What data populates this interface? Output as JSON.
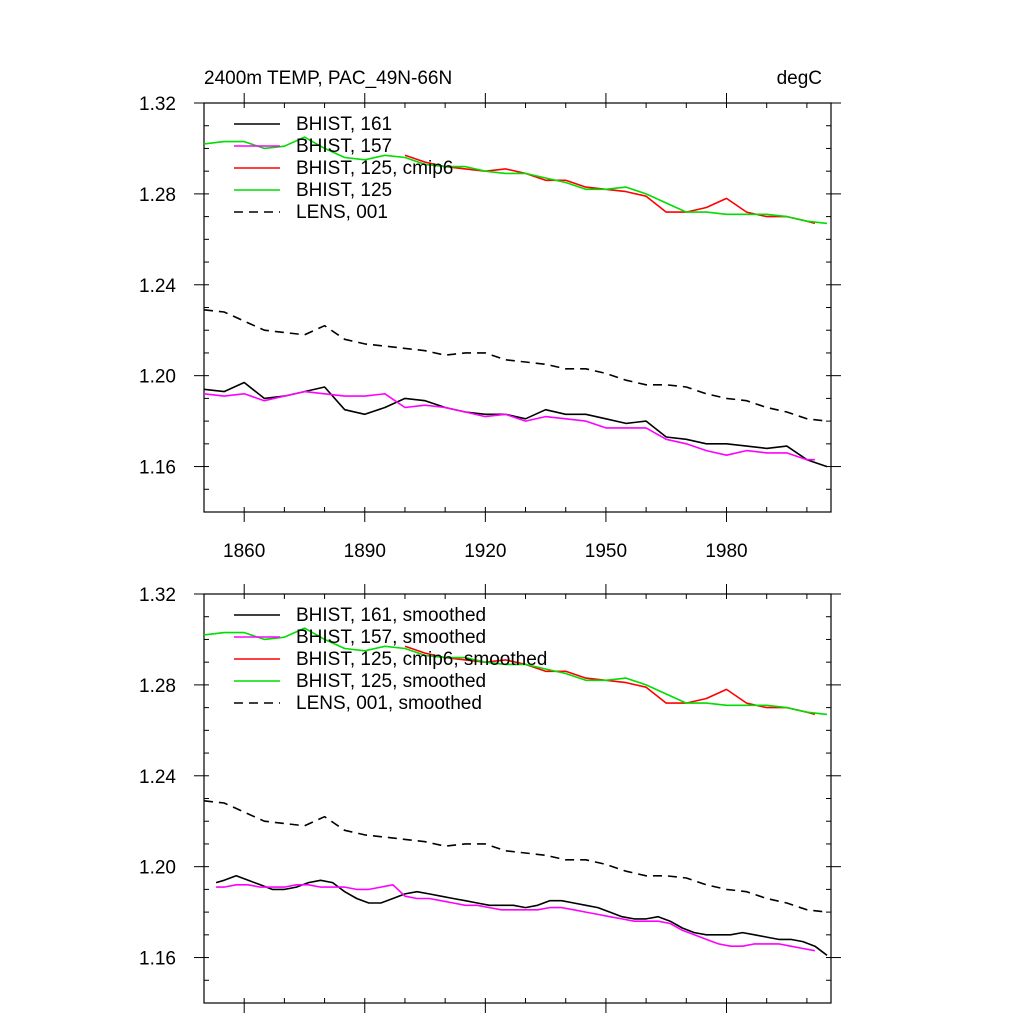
{
  "header": {
    "title": "2400m TEMP, PAC_49N-66N",
    "units": "degC"
  },
  "chart_data": [
    {
      "type": "line",
      "xlim": [
        1850,
        2006
      ],
      "ylim": [
        1.14,
        1.32
      ],
      "xticks": [
        1860,
        1890,
        1920,
        1950,
        1980
      ],
      "xtick_labels": [
        "1860",
        "1890",
        "1920",
        "1950",
        "1980"
      ],
      "yticks": [
        1.16,
        1.2,
        1.24,
        1.28,
        1.32
      ],
      "ytick_labels": [
        "1.16",
        "1.20",
        "1.24",
        "1.28",
        "1.32"
      ],
      "legend_position": "top-left",
      "series": [
        {
          "name": "BHIST, 161",
          "color": "#000000",
          "dash": "solid",
          "x": [
            1850,
            1855,
            1860,
            1865,
            1870,
            1875,
            1880,
            1885,
            1890,
            1895,
            1900,
            1905,
            1910,
            1915,
            1920,
            1925,
            1930,
            1935,
            1940,
            1945,
            1950,
            1955,
            1960,
            1965,
            1970,
            1975,
            1980,
            1985,
            1990,
            1995,
            2000,
            2005
          ],
          "y": [
            1.194,
            1.193,
            1.197,
            1.19,
            1.191,
            1.193,
            1.195,
            1.185,
            1.183,
            1.186,
            1.19,
            1.189,
            1.186,
            1.184,
            1.183,
            1.183,
            1.181,
            1.185,
            1.183,
            1.183,
            1.181,
            1.179,
            1.18,
            1.173,
            1.172,
            1.17,
            1.17,
            1.169,
            1.168,
            1.169,
            1.163,
            1.16
          ]
        },
        {
          "name": "BHIST, 157",
          "color": "#ff00ff",
          "dash": "solid",
          "x": [
            1850,
            1855,
            1860,
            1865,
            1870,
            1875,
            1880,
            1885,
            1890,
            1895,
            1900,
            1905,
            1910,
            1915,
            1920,
            1925,
            1930,
            1935,
            1940,
            1945,
            1950,
            1955,
            1960,
            1965,
            1970,
            1975,
            1980,
            1985,
            1990,
            1995,
            2000,
            2002
          ],
          "y": [
            1.192,
            1.191,
            1.192,
            1.189,
            1.191,
            1.193,
            1.192,
            1.191,
            1.191,
            1.192,
            1.186,
            1.187,
            1.186,
            1.184,
            1.182,
            1.183,
            1.18,
            1.182,
            1.181,
            1.18,
            1.177,
            1.177,
            1.177,
            1.172,
            1.17,
            1.167,
            1.165,
            1.167,
            1.166,
            1.166,
            1.163,
            1.163
          ]
        },
        {
          "name": "BHIST, 125, cmip6",
          "color": "#ff0000",
          "dash": "solid",
          "x": [
            1900,
            1905,
            1910,
            1915,
            1920,
            1925,
            1930,
            1935,
            1940,
            1945,
            1950,
            1955,
            1960,
            1965,
            1970,
            1975,
            1980,
            1985,
            1990,
            1995,
            2000,
            2002
          ],
          "y": [
            1.297,
            1.294,
            1.292,
            1.291,
            1.29,
            1.291,
            1.289,
            1.286,
            1.286,
            1.283,
            1.282,
            1.281,
            1.279,
            1.272,
            1.272,
            1.274,
            1.278,
            1.272,
            1.27,
            1.27,
            1.268,
            1.267
          ]
        },
        {
          "name": "BHIST, 125",
          "color": "#00dd00",
          "dash": "solid",
          "x": [
            1850,
            1855,
            1860,
            1865,
            1870,
            1875,
            1880,
            1885,
            1890,
            1895,
            1900,
            1905,
            1910,
            1915,
            1920,
            1925,
            1930,
            1935,
            1940,
            1945,
            1950,
            1955,
            1960,
            1965,
            1970,
            1975,
            1980,
            1985,
            1990,
            1995,
            2000,
            2005
          ],
          "y": [
            1.302,
            1.303,
            1.303,
            1.3,
            1.301,
            1.305,
            1.3,
            1.296,
            1.295,
            1.297,
            1.296,
            1.293,
            1.292,
            1.292,
            1.29,
            1.289,
            1.289,
            1.287,
            1.285,
            1.282,
            1.282,
            1.283,
            1.28,
            1.276,
            1.272,
            1.272,
            1.271,
            1.271,
            1.271,
            1.27,
            1.268,
            1.267
          ]
        },
        {
          "name": "LENS, 001",
          "color": "#000000",
          "dash": "dashed",
          "x": [
            1850,
            1855,
            1860,
            1865,
            1870,
            1875,
            1880,
            1885,
            1890,
            1895,
            1900,
            1905,
            1910,
            1915,
            1920,
            1925,
            1930,
            1935,
            1940,
            1945,
            1950,
            1955,
            1960,
            1965,
            1970,
            1975,
            1980,
            1985,
            1990,
            1995,
            2000,
            2005
          ],
          "y": [
            1.229,
            1.228,
            1.224,
            1.22,
            1.219,
            1.218,
            1.222,
            1.216,
            1.214,
            1.213,
            1.212,
            1.211,
            1.209,
            1.21,
            1.21,
            1.207,
            1.206,
            1.205,
            1.203,
            1.203,
            1.201,
            1.198,
            1.196,
            1.196,
            1.195,
            1.192,
            1.19,
            1.189,
            1.186,
            1.184,
            1.181,
            1.18
          ]
        }
      ]
    },
    {
      "type": "line",
      "xlim": [
        1850,
        2006
      ],
      "ylim": [
        1.14,
        1.32
      ],
      "xticks": [
        1860,
        1890,
        1920,
        1950,
        1980
      ],
      "yticks": [
        1.16,
        1.2,
        1.24,
        1.28,
        1.32
      ],
      "ytick_labels": [
        "1.16",
        "1.20",
        "1.24",
        "1.28",
        "1.32"
      ],
      "legend_position": "top-left",
      "series": [
        {
          "name": "BHIST, 161, smoothed",
          "color": "#000000",
          "dash": "solid",
          "x": [
            1853,
            1855,
            1858,
            1861,
            1864,
            1867,
            1870,
            1873,
            1876,
            1879,
            1882,
            1885,
            1888,
            1891,
            1894,
            1897,
            1900,
            1903,
            1906,
            1909,
            1912,
            1915,
            1918,
            1921,
            1924,
            1927,
            1930,
            1933,
            1936,
            1939,
            1942,
            1945,
            1948,
            1951,
            1954,
            1957,
            1960,
            1963,
            1966,
            1969,
            1972,
            1975,
            1978,
            1981,
            1984,
            1987,
            1990,
            1993,
            1996,
            1999,
            2002,
            2005
          ],
          "y": [
            1.193,
            1.194,
            1.196,
            1.194,
            1.192,
            1.19,
            1.19,
            1.191,
            1.193,
            1.194,
            1.193,
            1.189,
            1.186,
            1.184,
            1.184,
            1.186,
            1.188,
            1.189,
            1.188,
            1.187,
            1.186,
            1.185,
            1.184,
            1.183,
            1.183,
            1.183,
            1.182,
            1.183,
            1.185,
            1.185,
            1.184,
            1.183,
            1.182,
            1.18,
            1.178,
            1.177,
            1.177,
            1.178,
            1.176,
            1.173,
            1.171,
            1.17,
            1.17,
            1.17,
            1.171,
            1.17,
            1.169,
            1.168,
            1.168,
            1.167,
            1.165,
            1.161
          ]
        },
        {
          "name": "BHIST, 157, smoothed",
          "color": "#ff00ff",
          "dash": "solid",
          "x": [
            1853,
            1855,
            1858,
            1861,
            1864,
            1867,
            1870,
            1873,
            1876,
            1879,
            1882,
            1885,
            1888,
            1891,
            1894,
            1897,
            1900,
            1903,
            1906,
            1909,
            1912,
            1915,
            1918,
            1921,
            1924,
            1927,
            1930,
            1933,
            1936,
            1939,
            1942,
            1945,
            1948,
            1951,
            1954,
            1957,
            1960,
            1963,
            1966,
            1969,
            1972,
            1975,
            1978,
            1981,
            1984,
            1987,
            1990,
            1993,
            1996,
            1999,
            2002
          ],
          "y": [
            1.191,
            1.191,
            1.192,
            1.192,
            1.191,
            1.191,
            1.191,
            1.192,
            1.192,
            1.191,
            1.191,
            1.191,
            1.19,
            1.19,
            1.191,
            1.192,
            1.187,
            1.186,
            1.186,
            1.185,
            1.184,
            1.183,
            1.183,
            1.182,
            1.181,
            1.181,
            1.181,
            1.181,
            1.182,
            1.182,
            1.181,
            1.18,
            1.179,
            1.178,
            1.177,
            1.176,
            1.176,
            1.176,
            1.175,
            1.172,
            1.17,
            1.168,
            1.166,
            1.165,
            1.165,
            1.166,
            1.166,
            1.166,
            1.165,
            1.164,
            1.163
          ]
        },
        {
          "name": "BHIST, 125, cmip6, smoothed",
          "color": "#ff0000",
          "dash": "solid",
          "x": [
            1900,
            1905,
            1910,
            1915,
            1920,
            1925,
            1930,
            1935,
            1940,
            1945,
            1950,
            1955,
            1960,
            1965,
            1970,
            1975,
            1980,
            1985,
            1990,
            1995,
            2000,
            2002
          ],
          "y": [
            1.297,
            1.294,
            1.292,
            1.291,
            1.29,
            1.291,
            1.289,
            1.286,
            1.286,
            1.283,
            1.282,
            1.281,
            1.279,
            1.272,
            1.272,
            1.274,
            1.278,
            1.272,
            1.27,
            1.27,
            1.268,
            1.267
          ]
        },
        {
          "name": "BHIST, 125, smoothed",
          "color": "#00dd00",
          "dash": "solid",
          "x": [
            1850,
            1855,
            1860,
            1865,
            1870,
            1875,
            1880,
            1885,
            1890,
            1895,
            1900,
            1905,
            1910,
            1915,
            1920,
            1925,
            1930,
            1935,
            1940,
            1945,
            1950,
            1955,
            1960,
            1965,
            1970,
            1975,
            1980,
            1985,
            1990,
            1995,
            2000,
            2005
          ],
          "y": [
            1.302,
            1.303,
            1.303,
            1.3,
            1.301,
            1.305,
            1.3,
            1.296,
            1.295,
            1.297,
            1.296,
            1.293,
            1.292,
            1.292,
            1.29,
            1.289,
            1.289,
            1.287,
            1.285,
            1.282,
            1.282,
            1.283,
            1.28,
            1.276,
            1.272,
            1.272,
            1.271,
            1.271,
            1.271,
            1.27,
            1.268,
            1.267
          ]
        },
        {
          "name": "LENS, 001, smoothed",
          "color": "#000000",
          "dash": "dashed",
          "x": [
            1850,
            1855,
            1860,
            1865,
            1870,
            1875,
            1880,
            1885,
            1890,
            1895,
            1900,
            1905,
            1910,
            1915,
            1920,
            1925,
            1930,
            1935,
            1940,
            1945,
            1950,
            1955,
            1960,
            1965,
            1970,
            1975,
            1980,
            1985,
            1990,
            1995,
            2000,
            2005
          ],
          "y": [
            1.229,
            1.228,
            1.224,
            1.22,
            1.219,
            1.218,
            1.222,
            1.216,
            1.214,
            1.213,
            1.212,
            1.211,
            1.209,
            1.21,
            1.21,
            1.207,
            1.206,
            1.205,
            1.203,
            1.203,
            1.201,
            1.198,
            1.196,
            1.196,
            1.195,
            1.192,
            1.19,
            1.189,
            1.186,
            1.184,
            1.181,
            1.18
          ]
        }
      ]
    }
  ]
}
